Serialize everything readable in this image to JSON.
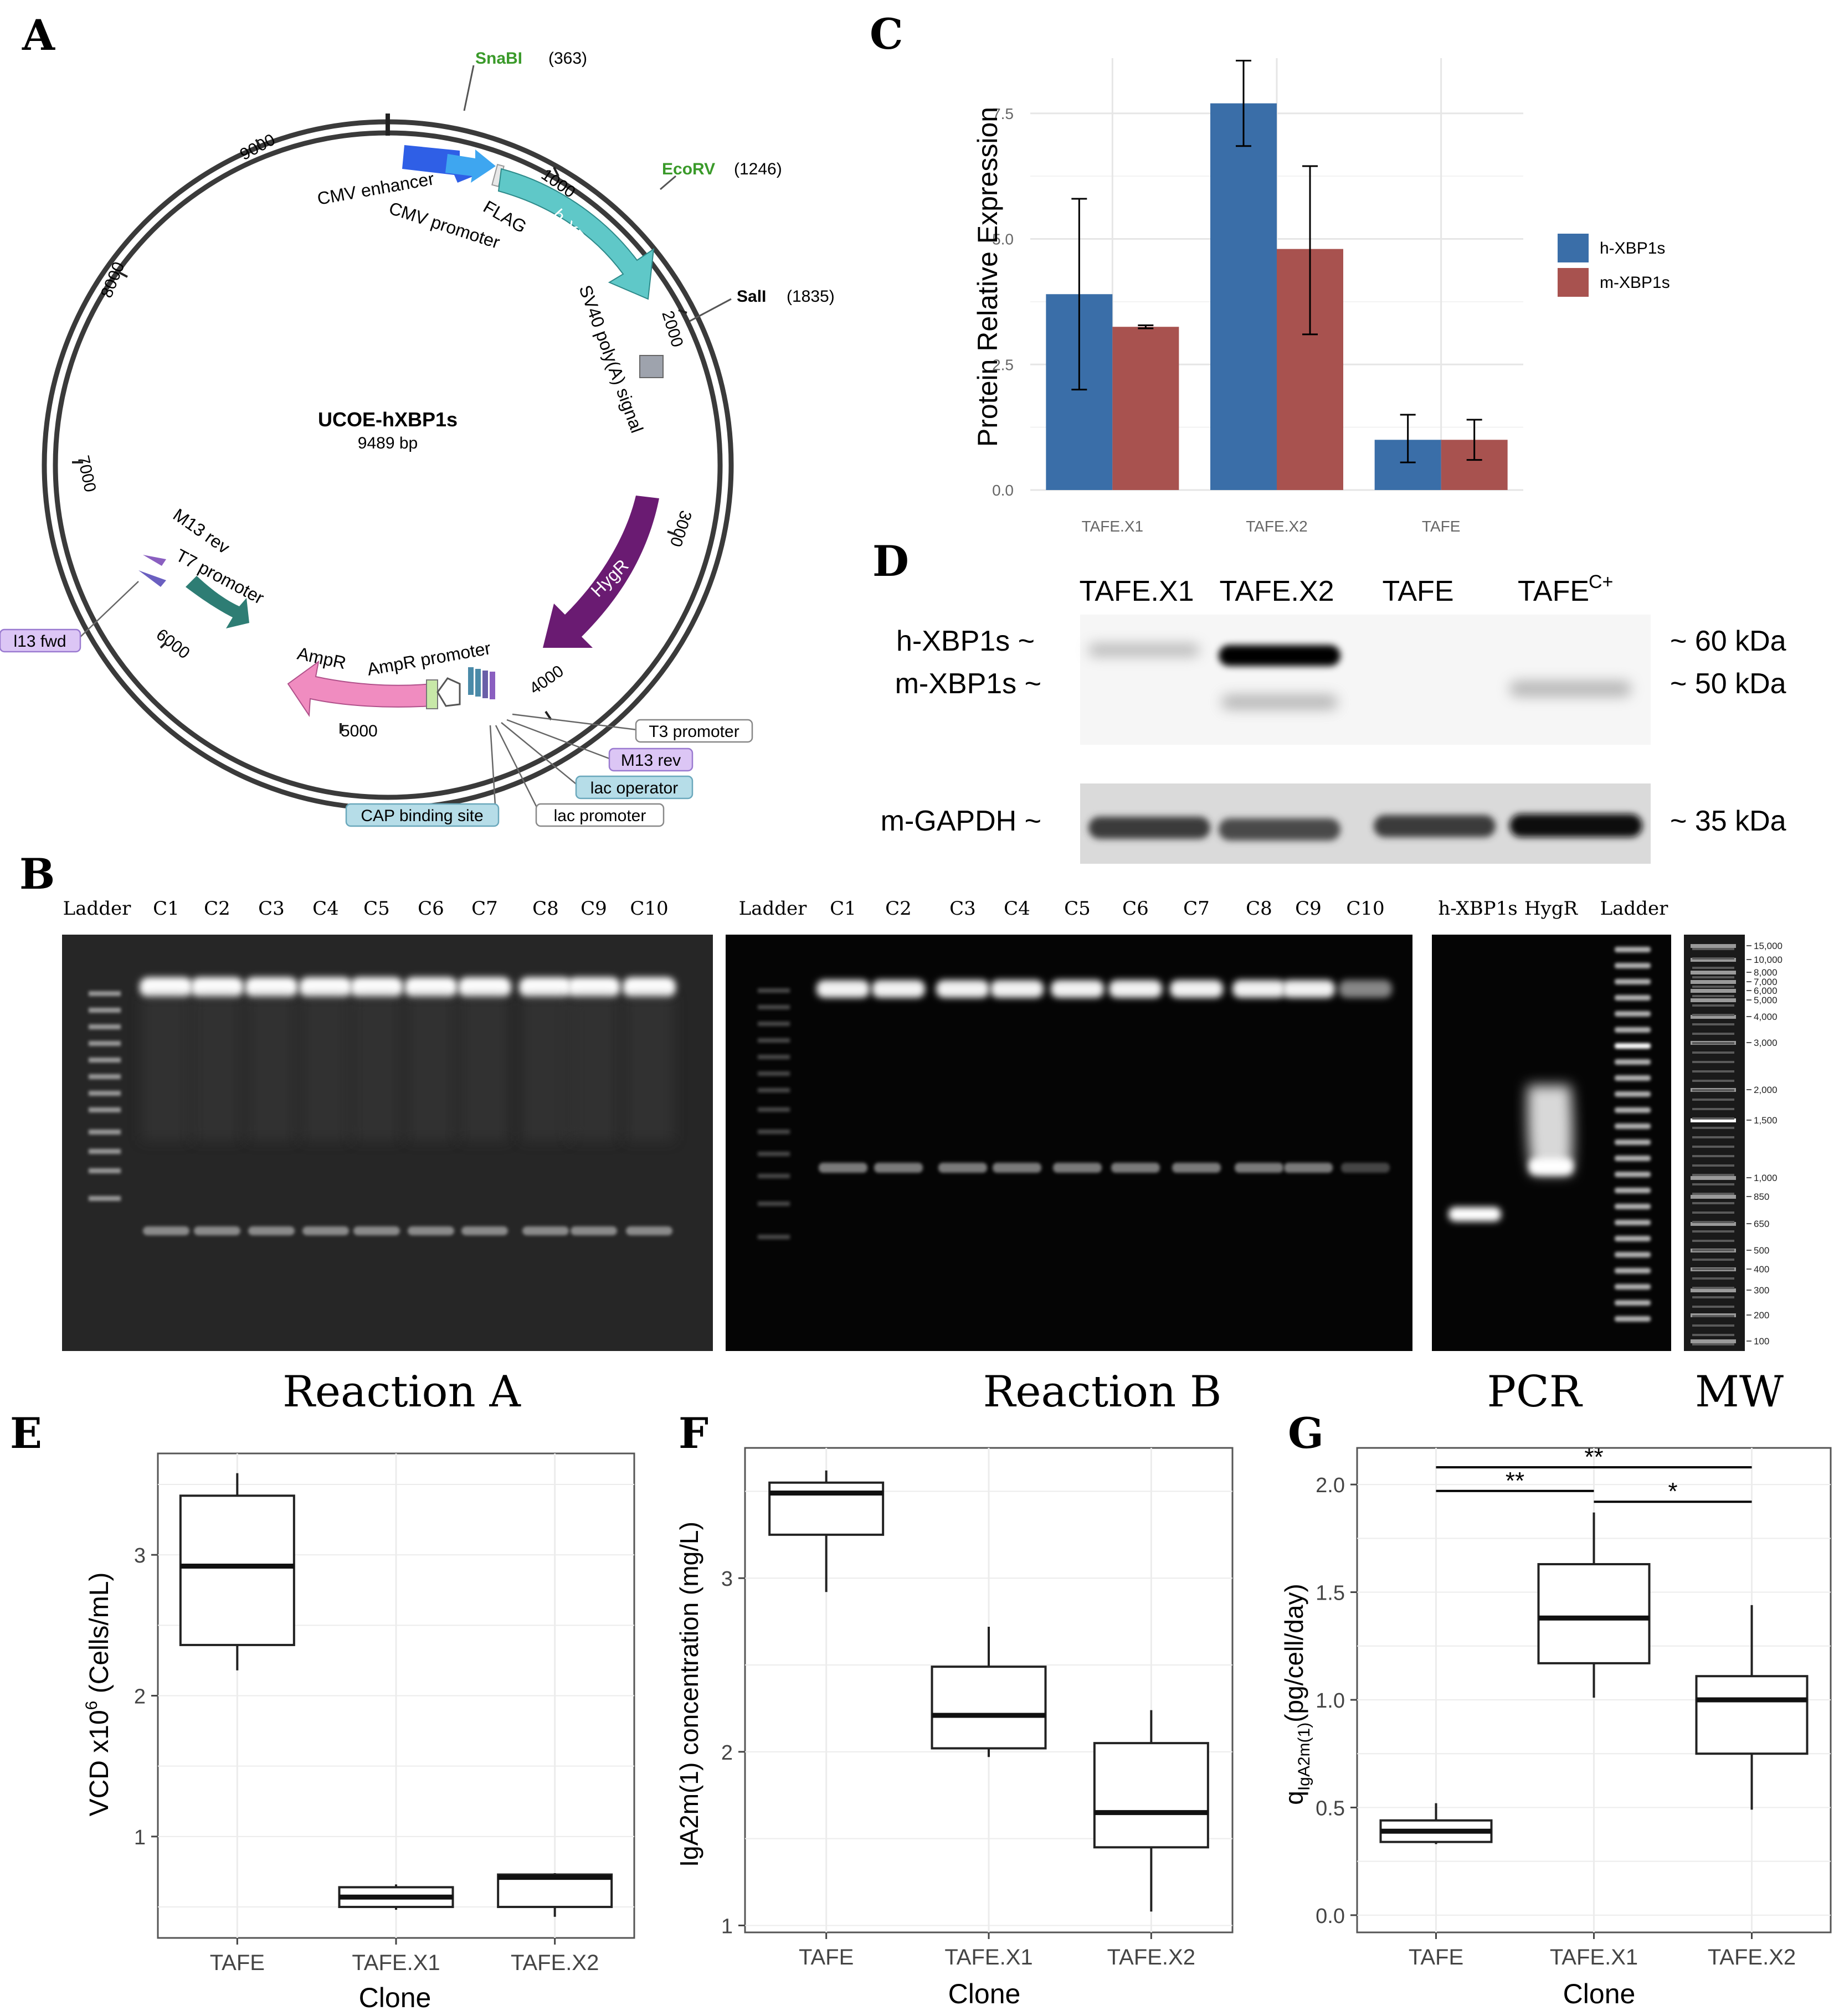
{
  "panel_letters": [
    "A",
    "B",
    "C",
    "D",
    "E",
    "F",
    "G"
  ],
  "plasmid": {
    "name": "UCOE-hXBP1s",
    "size": "9489 bp",
    "ticks": [
      "1000",
      "2000",
      "3000",
      "4000",
      "5000",
      "6000",
      "7000",
      "8000",
      "9000"
    ],
    "sites": [
      {
        "name": "SnaBI",
        "pos": "(363)"
      },
      {
        "name": "EcoRV",
        "pos": "(1246)"
      },
      {
        "name": "SalI",
        "pos": "(1835)"
      }
    ],
    "features": [
      "CMV enhancer",
      "CMV promoter",
      "FLAG",
      "h-XBP1s",
      "SV40 poly(A) signal",
      "HygR",
      "AmpR",
      "AmpR promoter",
      "ori",
      "T7 promoter",
      "M13 rev"
    ],
    "callouts": [
      "T3 promoter",
      "M13 rev",
      "lac operator",
      "lac promoter",
      "CAP binding site",
      "l13 fwd"
    ],
    "colors": {
      "cmv_enhancer": "#2f5fe6",
      "cmv_promoter": "#3ea6f0",
      "hxbp1s": "#5fc8c8",
      "hygr": "#6a1b72",
      "ampr": "#f08cc0",
      "ori": "#2e7d74",
      "green_site": "#3a9a2a"
    }
  },
  "gels": {
    "reaction_a_lanes": [
      "Ladder",
      "C1",
      "C2",
      "C3",
      "C4",
      "C5",
      "C6",
      "C7",
      "C8",
      "C9",
      "C10"
    ],
    "reaction_b_lanes": [
      "Ladder",
      "C1",
      "C2",
      "C3",
      "C4",
      "C5",
      "C6",
      "C7",
      "C8",
      "C9",
      "C10"
    ],
    "pcr_lanes": [
      "h-XBP1s",
      "HygR",
      "Ladder"
    ],
    "mw_labels": [
      "15,000",
      "10,000",
      "8,000",
      "7,000",
      "6,000",
      "5,000",
      "4,000",
      "3,000",
      "2,000",
      "1,500",
      "1,000",
      "850",
      "650",
      "500",
      "400",
      "300",
      "200",
      "100"
    ],
    "captions": [
      "Reaction A",
      "Reaction B",
      "PCR",
      "MW"
    ]
  },
  "western": {
    "lanes": [
      "TAFE.X1",
      "TAFE.X2",
      "TAFE",
      "TAFE"
    ],
    "superscript": "C+",
    "rows": [
      "h-XBP1s ~",
      "m-XBP1s ~",
      "m-GAPDH ~"
    ],
    "sizes": [
      "~ 60 kDa",
      "~ 50 kDa",
      "~ 35 kDa"
    ]
  },
  "chart_data": [
    {
      "panel": "C",
      "type": "bar",
      "categories": [
        "TAFE.X1",
        "TAFE.X2",
        "TAFE"
      ],
      "series": [
        {
          "name": "h-XBP1s",
          "color": "#3a6ea8",
          "values": [
            3.9,
            7.7,
            1.0
          ],
          "err_low": [
            2.0,
            6.85,
            0.55
          ],
          "err_high": [
            5.8,
            8.55,
            1.5
          ]
        },
        {
          "name": "m-XBP1s",
          "color": "#a8524f",
          "values": [
            3.25,
            4.8,
            1.0
          ],
          "err_low": [
            3.22,
            3.1,
            0.6
          ],
          "err_high": [
            3.28,
            6.45,
            1.4
          ]
        }
      ],
      "ylabel": "Protein Relative Expression",
      "yticks": [
        "0.0",
        "2.5",
        "5.0",
        "7.5"
      ],
      "ylim": [
        0,
        8.6
      ],
      "legend": "right"
    },
    {
      "panel": "E",
      "type": "box",
      "categories": [
        "TAFE",
        "TAFE.X1",
        "TAFE.X2"
      ],
      "boxes": [
        {
          "min": 2.18,
          "q1": 2.36,
          "median": 2.92,
          "q3": 3.42,
          "max": 3.58
        },
        {
          "min": 0.48,
          "q1": 0.5,
          "median": 0.57,
          "q3": 0.64,
          "max": 0.66
        },
        {
          "min": 0.43,
          "q1": 0.5,
          "median": 0.71,
          "q3": 0.73,
          "max": 0.74
        }
      ],
      "xlabel": "Clone",
      "ylabel_prefix": "VCD x10",
      "ylabel_sup": "6",
      "ylabel_suffix": " (Cells/mL)",
      "yticks": [
        "1",
        "2",
        "3"
      ],
      "ylim": [
        0.28,
        3.72
      ]
    },
    {
      "panel": "F",
      "type": "box",
      "categories": [
        "TAFE",
        "TAFE.X1",
        "TAFE.X2"
      ],
      "boxes": [
        {
          "min": 2.92,
          "q1": 3.25,
          "median": 3.49,
          "q3": 3.55,
          "max": 3.62
        },
        {
          "min": 1.97,
          "q1": 2.02,
          "median": 2.21,
          "q3": 2.49,
          "max": 2.72
        },
        {
          "min": 1.08,
          "q1": 1.45,
          "median": 1.65,
          "q3": 2.05,
          "max": 2.24
        }
      ],
      "xlabel": "Clone",
      "ylabel": "IgA2m(1) concentration (mg/L)",
      "yticks": [
        "1",
        "2",
        "3"
      ],
      "ylim": [
        0.96,
        3.75
      ]
    },
    {
      "panel": "G",
      "type": "box",
      "categories": [
        "TAFE",
        "TAFE.X1",
        "TAFE.X2"
      ],
      "boxes": [
        {
          "min": 0.33,
          "q1": 0.34,
          "median": 0.39,
          "q3": 0.44,
          "max": 0.52
        },
        {
          "min": 1.01,
          "q1": 1.17,
          "median": 1.38,
          "q3": 1.63,
          "max": 1.87
        },
        {
          "min": 0.49,
          "q1": 0.75,
          "median": 1.0,
          "q3": 1.11,
          "max": 1.44
        }
      ],
      "xlabel": "Clone",
      "ylabel_prefix": "q",
      "ylabel_sub": "IgA2m(1)",
      "ylabel_suffix": "(pg/cell/day)",
      "yticks": [
        "0.0",
        "0.5",
        "1.0",
        "1.5",
        "2.0"
      ],
      "ylim": [
        -0.08,
        2.17
      ],
      "significance": [
        {
          "from": 0,
          "to": 2,
          "y": 2.08,
          "label": "**"
        },
        {
          "from": 0,
          "to": 1,
          "y": 1.97,
          "label": "**"
        },
        {
          "from": 1,
          "to": 2,
          "y": 1.92,
          "label": "*"
        }
      ]
    }
  ]
}
